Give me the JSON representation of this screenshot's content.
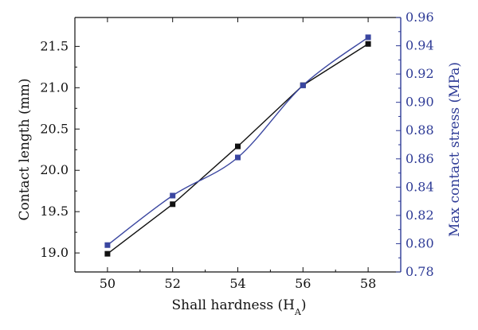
{
  "chart_data": {
    "type": "line",
    "xlabel": "Shall hardness (H",
    "xlabel_sub": "A",
    "xlabel_close": ")",
    "ylabel_left": "Contact length (mm)",
    "ylabel_right": "Max contact stress (MPa)",
    "x": [
      50,
      52,
      54,
      56,
      58
    ],
    "xticks": [
      "50",
      "52",
      "54",
      "56",
      "58"
    ],
    "xlim": [
      49,
      59
    ],
    "ylim_left": [
      18.77,
      21.85
    ],
    "yticks_left": [
      "19.0",
      "19.5",
      "20.0",
      "20.5",
      "21.0",
      "21.5"
    ],
    "ylim_right": [
      0.78,
      0.96
    ],
    "yticks_right": [
      "0.78",
      "0.80",
      "0.82",
      "0.84",
      "0.86",
      "0.88",
      "0.90",
      "0.92",
      "0.94",
      "0.96"
    ],
    "grid": false,
    "series": [
      {
        "axis": "left",
        "color": "#111111",
        "marker": "square",
        "smooth": false,
        "values": [
          18.99,
          19.59,
          20.29,
          21.03,
          21.53
        ]
      },
      {
        "axis": "right",
        "color": "#3a46a0",
        "marker": "square",
        "smooth": true,
        "values": [
          0.799,
          0.834,
          0.861,
          0.912,
          0.946
        ]
      }
    ],
    "colors": {
      "axis_left": "#111111",
      "axis_right": "#2e3b96",
      "frame": "#111111"
    }
  }
}
